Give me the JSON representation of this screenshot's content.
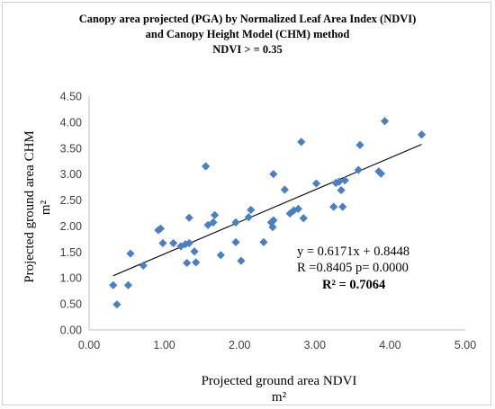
{
  "chart_data": {
    "type": "scatter",
    "title_lines": [
      "Canopy area projected (PGA) by Normalized Leaf Area Index (NDVI)",
      "and Canopy Height Model (CHM) method",
      "NDVI > = 0.35"
    ],
    "xlabel": "Projected ground area NDVI",
    "xlabel_unit": "m²",
    "ylabel": "Projected  ground area CHM",
    "ylabel_unit": "m²",
    "xlim": [
      0,
      5
    ],
    "ylim": [
      0,
      4.5
    ],
    "x_ticks": [
      "0.00",
      "1.00",
      "2.00",
      "3.00",
      "4.00",
      "5.00"
    ],
    "y_ticks": [
      "0.00",
      "0.50",
      "1.00",
      "1.50",
      "2.00",
      "2.50",
      "3.00",
      "3.50",
      "4.00",
      "4.50"
    ],
    "grid": false,
    "marker": "diamond",
    "marker_color": "#4a7fc1",
    "trendline": {
      "slope": 0.6171,
      "intercept": 0.8448,
      "x_range": [
        0.32,
        4.42
      ],
      "color": "#000000"
    },
    "annotations": [
      "y = 0.6171x + 0.8448",
      "R =0.8405 p= 0.0000",
      "R² = 0.7064"
    ],
    "points": [
      [
        0.32,
        0.86
      ],
      [
        0.37,
        0.49
      ],
      [
        0.52,
        0.86
      ],
      [
        0.55,
        1.47
      ],
      [
        0.72,
        1.24
      ],
      [
        0.92,
        1.92
      ],
      [
        0.95,
        1.95
      ],
      [
        0.98,
        1.67
      ],
      [
        1.12,
        1.67
      ],
      [
        1.22,
        1.61
      ],
      [
        1.28,
        1.65
      ],
      [
        1.3,
        1.29
      ],
      [
        1.33,
        1.67
      ],
      [
        1.33,
        2.16
      ],
      [
        1.4,
        1.51
      ],
      [
        1.42,
        1.3
      ],
      [
        1.55,
        3.15
      ],
      [
        1.58,
        2.02
      ],
      [
        1.65,
        2.07
      ],
      [
        1.67,
        2.21
      ],
      [
        1.75,
        1.44
      ],
      [
        1.95,
        2.07
      ],
      [
        1.95,
        1.69
      ],
      [
        2.02,
        1.33
      ],
      [
        2.12,
        2.17
      ],
      [
        2.15,
        2.31
      ],
      [
        2.32,
        1.69
      ],
      [
        2.42,
        2.07
      ],
      [
        2.44,
        1.98
      ],
      [
        2.45,
        2.11
      ],
      [
        2.45,
        3.0
      ],
      [
        2.6,
        2.7
      ],
      [
        2.67,
        2.24
      ],
      [
        2.72,
        2.3
      ],
      [
        2.78,
        2.33
      ],
      [
        2.82,
        3.62
      ],
      [
        2.85,
        2.15
      ],
      [
        3.02,
        2.82
      ],
      [
        3.25,
        2.37
      ],
      [
        3.28,
        2.83
      ],
      [
        3.32,
        2.85
      ],
      [
        3.35,
        2.69
      ],
      [
        3.37,
        2.37
      ],
      [
        3.4,
        2.88
      ],
      [
        3.58,
        3.08
      ],
      [
        3.6,
        3.56
      ],
      [
        3.85,
        3.05
      ],
      [
        3.88,
        3.01
      ],
      [
        3.93,
        4.02
      ],
      [
        4.42,
        3.76
      ]
    ]
  }
}
